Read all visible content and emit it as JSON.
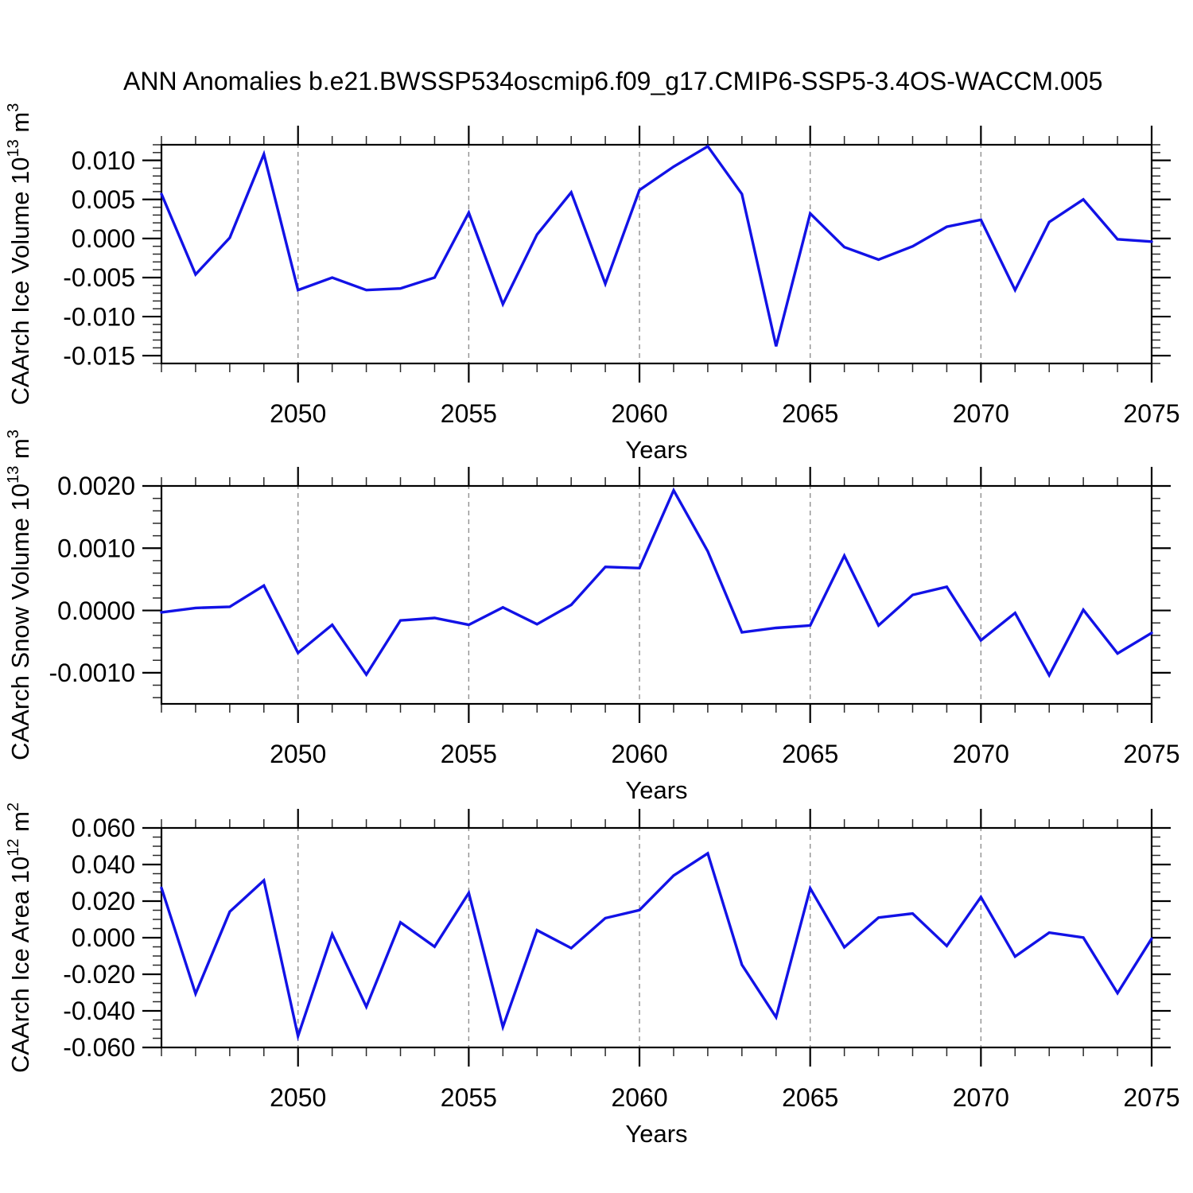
{
  "title": "ANN Anomalies b.e21.BWSSP534oscmip6.f09_g17.CMIP6-SSP5-3.4OS-WACCM.005",
  "grid_color": "#909090",
  "frame_color": "#000000",
  "chart_data": [
    {
      "type": "line",
      "ylabel_parts": [
        "CAArch Ice Volume 10",
        "^13",
        " m",
        "^3"
      ],
      "xlabel": "Years",
      "x": [
        2046,
        2047,
        2048,
        2049,
        2050,
        2051,
        2052,
        2053,
        2054,
        2055,
        2056,
        2057,
        2058,
        2059,
        2060,
        2061,
        2062,
        2063,
        2064,
        2065,
        2066,
        2067,
        2068,
        2069,
        2070,
        2071,
        2072,
        2073,
        2074,
        2075
      ],
      "values": [
        0.0057,
        -0.0046,
        0.0001,
        0.0108,
        -0.0066,
        -0.005,
        -0.0066,
        -0.0064,
        -0.005,
        0.0033,
        -0.0084,
        0.0005,
        0.0059,
        -0.0058,
        0.0062,
        0.0092,
        0.0118,
        0.0057,
        -0.0138,
        0.0032,
        -0.0011,
        -0.0027,
        -0.001,
        0.0015,
        0.0024,
        -0.0066,
        0.0021,
        0.005,
        -0.0001,
        -0.0004
      ],
      "xlim": [
        2046,
        2075
      ],
      "ylim": [
        -0.016,
        0.012
      ],
      "xticks_major": [
        2050,
        2055,
        2060,
        2065,
        2070,
        2075
      ],
      "xtick_labels": [
        "2050",
        "2055",
        "2060",
        "2065",
        "2070",
        "2075"
      ],
      "xtick_minor_step": 1,
      "yticks_major": [
        0.01,
        0.005,
        0.0,
        -0.005,
        -0.01,
        -0.015
      ],
      "ytick_labels": [
        "0.010",
        "0.005",
        "0.000",
        "-0.005",
        "-0.010",
        "-0.015"
      ],
      "ytick_minor_step": 0.001,
      "grid_x": [
        2050,
        2055,
        2060,
        2065,
        2070
      ],
      "line_color": "#1212E6",
      "legend": "none",
      "grid_on": true
    },
    {
      "type": "line",
      "ylabel_parts": [
        "CAArch Snow Volume 10",
        "^13",
        " m",
        "^3"
      ],
      "xlabel": "Years",
      "x": [
        2046,
        2047,
        2048,
        2049,
        2050,
        2051,
        2052,
        2053,
        2054,
        2055,
        2056,
        2057,
        2058,
        2059,
        2060,
        2061,
        2062,
        2063,
        2064,
        2065,
        2066,
        2067,
        2068,
        2069,
        2070,
        2071,
        2072,
        2073,
        2074,
        2075
      ],
      "values": [
        -3e-05,
        4e-05,
        6e-05,
        0.0004,
        -0.00068,
        -0.00023,
        -0.00103,
        -0.00016,
        -0.00012,
        -0.00023,
        5e-05,
        -0.00022,
        9e-05,
        0.0007,
        0.00068,
        0.00193,
        0.00095,
        -0.00035,
        -0.00028,
        -0.00024,
        0.00088,
        -0.00024,
        0.00025,
        0.00038,
        -0.00048,
        -4e-05,
        -0.00104,
        1e-05,
        -0.00069,
        -0.00036
      ],
      "xlim": [
        2046,
        2075
      ],
      "ylim": [
        -0.0015,
        0.002
      ],
      "xticks_major": [
        2050,
        2055,
        2060,
        2065,
        2070,
        2075
      ],
      "xtick_labels": [
        "2050",
        "2055",
        "2060",
        "2065",
        "2070",
        "2075"
      ],
      "xtick_minor_step": 1,
      "yticks_major": [
        0.002,
        0.001,
        0.0,
        -0.001
      ],
      "ytick_labels": [
        "0.0020",
        "0.0010",
        "0.0000",
        "-0.0010"
      ],
      "ytick_minor_step": 0.0002,
      "grid_x": [
        2050,
        2055,
        2060,
        2065,
        2070
      ],
      "line_color": "#1212E6",
      "legend": "none",
      "grid_on": true
    },
    {
      "type": "line",
      "ylabel_parts": [
        "CAArch Ice Area 10",
        "^12",
        " m",
        "^2"
      ],
      "xlabel": "Years",
      "x": [
        2046,
        2047,
        2048,
        2049,
        2050,
        2051,
        2052,
        2053,
        2054,
        2055,
        2056,
        2057,
        2058,
        2059,
        2060,
        2061,
        2062,
        2063,
        2064,
        2065,
        2066,
        2067,
        2068,
        2069,
        2070,
        2071,
        2072,
        2073,
        2074,
        2075
      ],
      "values": [
        0.0272,
        -0.0306,
        0.0142,
        0.0313,
        -0.0538,
        0.0019,
        -0.0378,
        0.0084,
        -0.0049,
        0.0245,
        -0.0488,
        0.0041,
        -0.0057,
        0.0107,
        0.0151,
        0.034,
        0.0461,
        -0.0148,
        -0.0435,
        0.027,
        -0.0052,
        0.011,
        0.0132,
        -0.0045,
        0.0222,
        -0.0103,
        0.0028,
        0.0001,
        -0.0303,
        -0.0005
      ],
      "xlim": [
        2046,
        2075
      ],
      "ylim": [
        -0.06,
        0.06
      ],
      "xticks_major": [
        2050,
        2055,
        2060,
        2065,
        2070,
        2075
      ],
      "xtick_labels": [
        "2050",
        "2055",
        "2060",
        "2065",
        "2070",
        "2075"
      ],
      "xtick_minor_step": 1,
      "yticks_major": [
        0.06,
        0.04,
        0.02,
        0.0,
        -0.02,
        -0.04,
        -0.06
      ],
      "ytick_labels": [
        "0.060",
        "0.040",
        "0.020",
        "0.000",
        "-0.020",
        "-0.040",
        "-0.060"
      ],
      "ytick_minor_step": 0.005,
      "grid_x": [
        2050,
        2055,
        2060,
        2065,
        2070
      ],
      "line_color": "#1212E6",
      "legend": "none",
      "grid_on": true
    }
  ]
}
